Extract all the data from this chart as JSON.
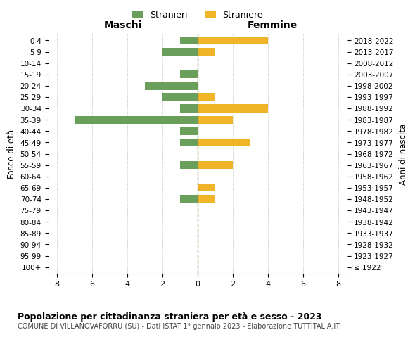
{
  "age_groups": [
    "100+",
    "95-99",
    "90-94",
    "85-89",
    "80-84",
    "75-79",
    "70-74",
    "65-69",
    "60-64",
    "55-59",
    "50-54",
    "45-49",
    "40-44",
    "35-39",
    "30-34",
    "25-29",
    "20-24",
    "15-19",
    "10-14",
    "5-9",
    "0-4"
  ],
  "birth_years": [
    "≤ 1922",
    "1923-1927",
    "1928-1932",
    "1933-1937",
    "1938-1942",
    "1943-1947",
    "1948-1952",
    "1953-1957",
    "1958-1962",
    "1963-1967",
    "1968-1972",
    "1973-1977",
    "1978-1982",
    "1983-1987",
    "1988-1992",
    "1993-1997",
    "1998-2002",
    "2003-2007",
    "2008-2012",
    "2013-2017",
    "2018-2022"
  ],
  "stranieri": [
    0,
    0,
    0,
    0,
    0,
    0,
    1,
    0,
    0,
    1,
    0,
    1,
    1,
    7,
    1,
    2,
    3,
    1,
    0,
    2,
    1
  ],
  "straniere": [
    0,
    0,
    0,
    0,
    0,
    0,
    1,
    1,
    0,
    2,
    0,
    3,
    0,
    2,
    4,
    1,
    0,
    0,
    0,
    1,
    4
  ],
  "stranieri_color": "#6a9e5b",
  "straniere_color": "#f0b429",
  "xlim": 8.5,
  "title": "Popolazione per cittadinanza straniera per età e sesso - 2023",
  "subtitle": "COMUNE DI VILLANOVAFORRU (SU) - Dati ISTAT 1° gennaio 2023 - Elaborazione TUTTITALIA.IT",
  "xlabel_left": "Maschi",
  "xlabel_right": "Femmine",
  "ylabel_left": "Fasce di età",
  "ylabel_right": "Anni di nascita",
  "background_color": "#ffffff",
  "grid_color": "#cccccc"
}
